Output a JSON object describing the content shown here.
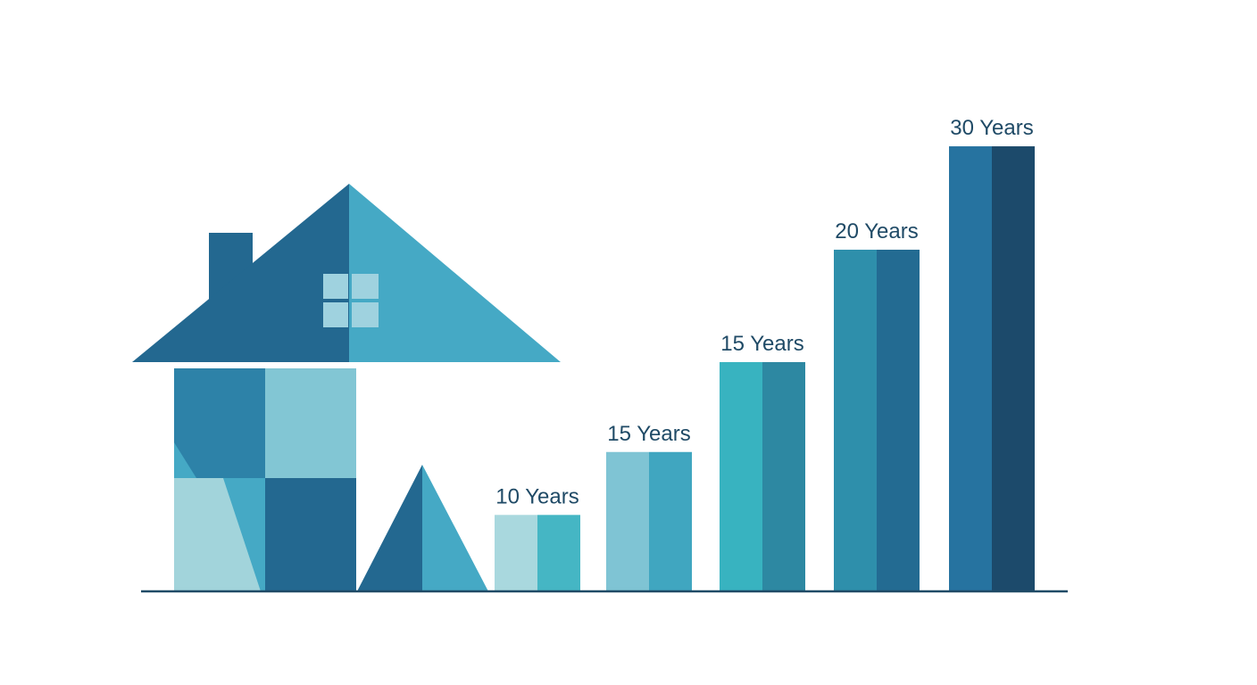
{
  "chart_data": {
    "type": "bar",
    "categories": [
      "10 Years",
      "15 Years",
      "15 Years",
      "20 Years",
      "30 Years"
    ],
    "values": [
      17,
      31,
      51,
      76,
      99
    ],
    "ylim": [
      0,
      100
    ],
    "title": "",
    "xlabel": "",
    "ylabel": "",
    "grid": false,
    "legend": "none",
    "bar_colors": [
      [
        "#a9d8de",
        "#45b6c4"
      ],
      [
        "#7fc4d4",
        "#40a6c0"
      ],
      [
        "#38b3c0",
        "#2d88a2"
      ],
      [
        "#2e8fab",
        "#236b92"
      ],
      [
        "#2673a0",
        "#1c4a6b"
      ]
    ]
  },
  "illustration": {
    "icon": "house-icon",
    "colors": {
      "dark": "#236890",
      "mid": "#2d82a8",
      "light": "#45a9c5",
      "pale": "#82c6d4",
      "paler": "#a2d4db",
      "window": "#9fd2df"
    }
  },
  "colors": {
    "label_text": "#1f4a66",
    "baseline": "#1f4a66",
    "background": "#ffffff"
  }
}
